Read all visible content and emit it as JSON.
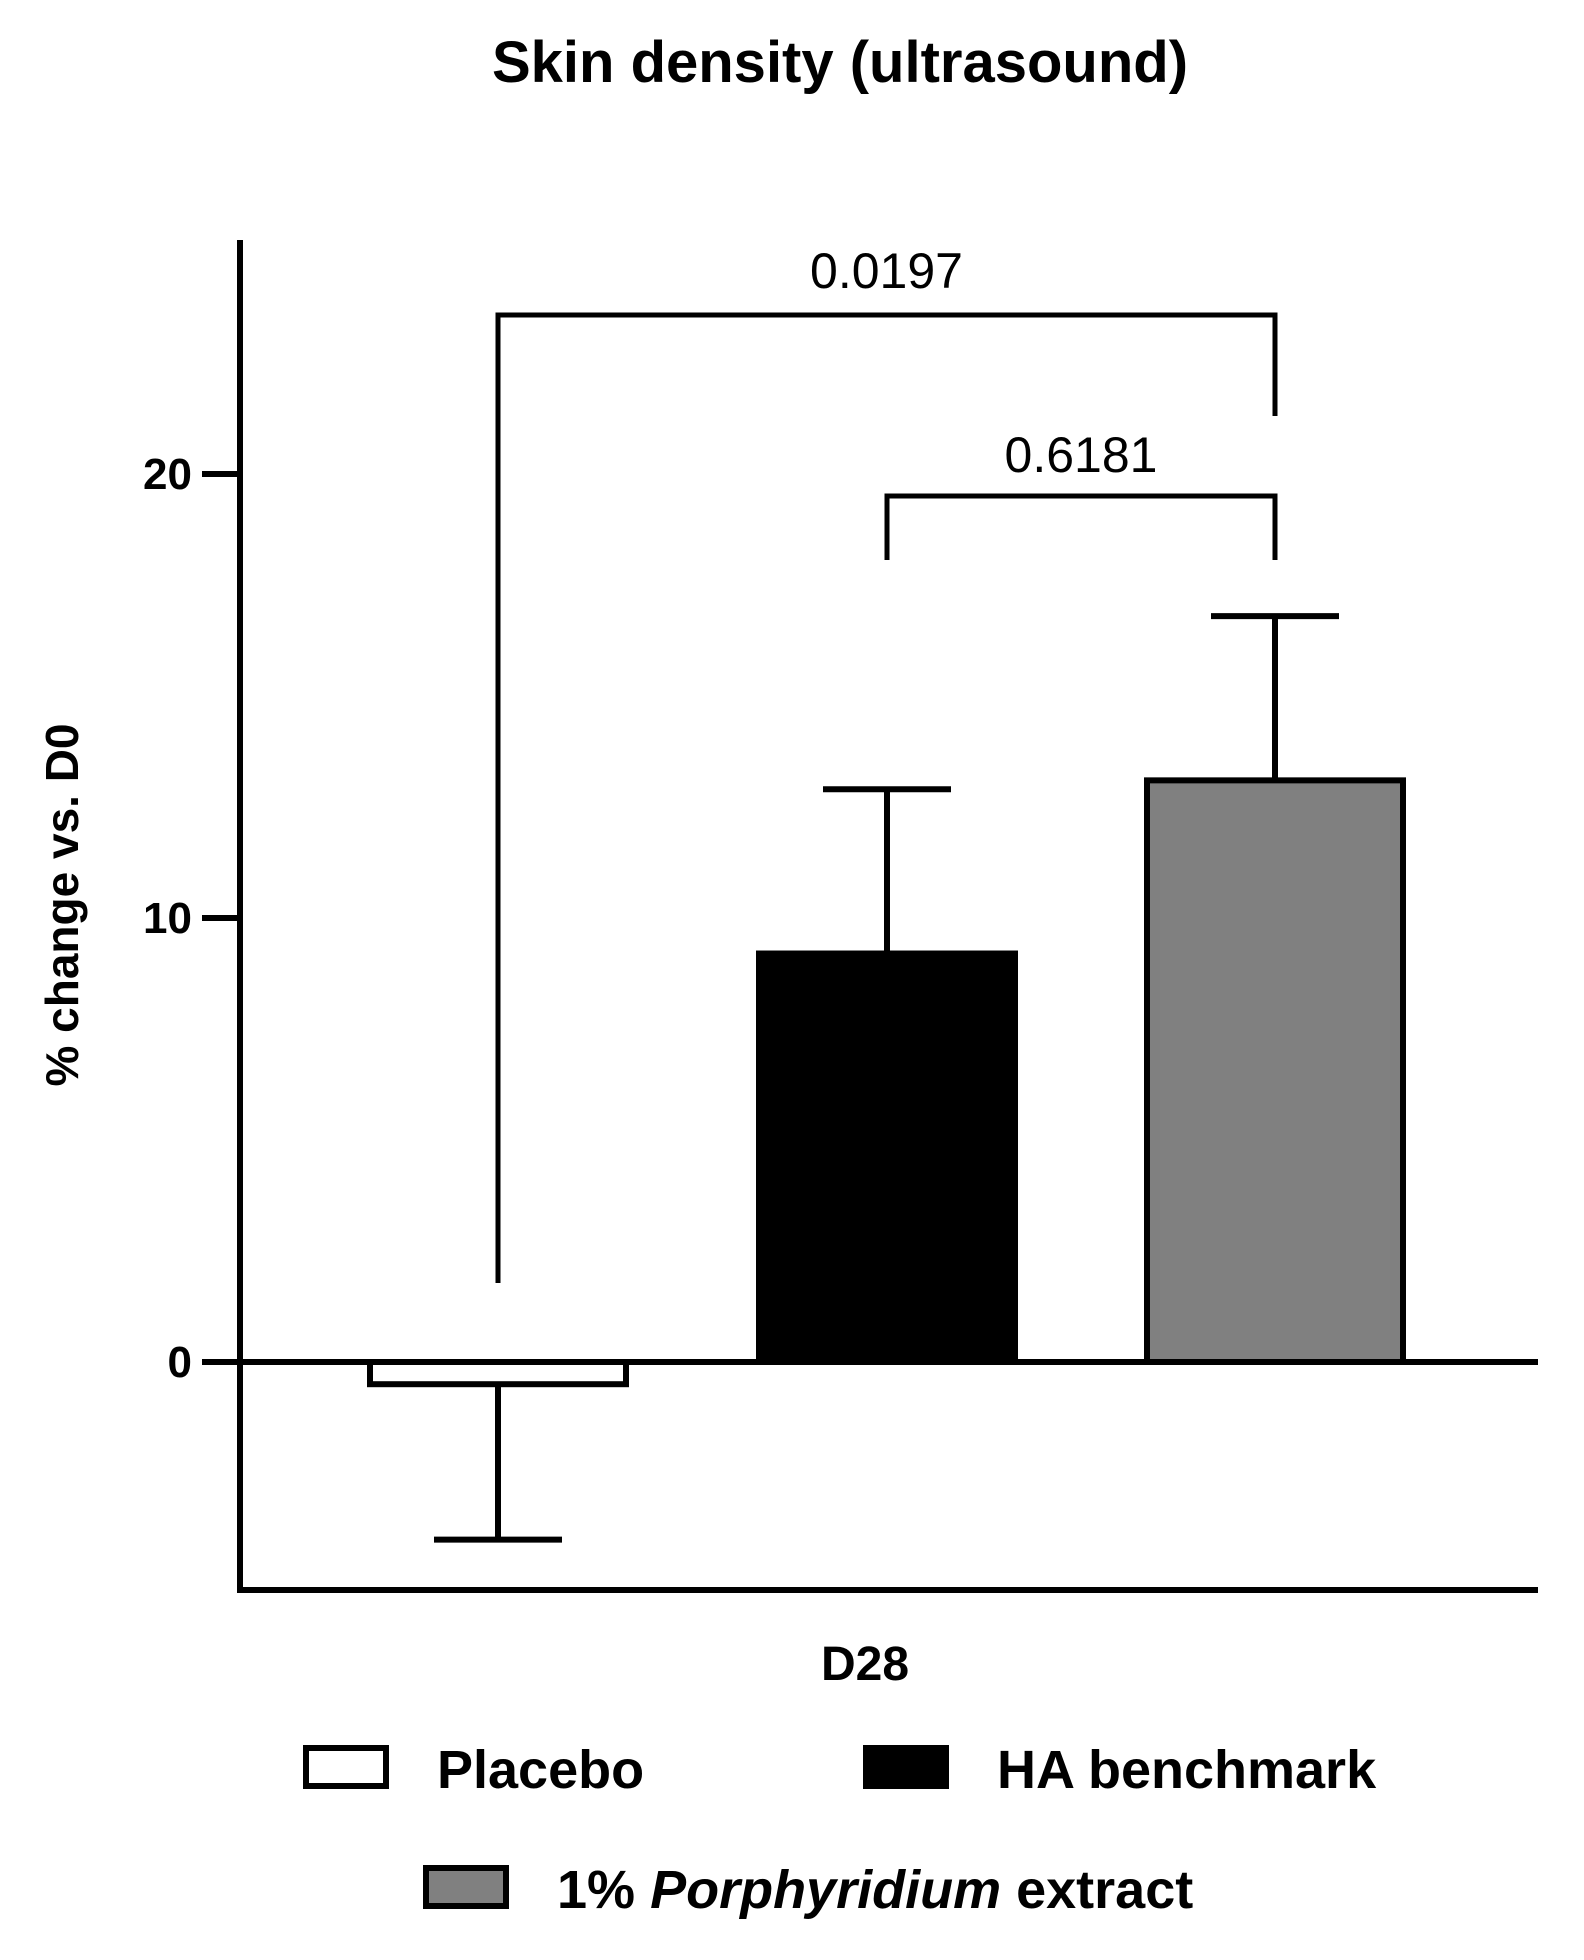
{
  "chart_data": {
    "type": "bar",
    "title": "Skin density (ultrasound)",
    "xlabel": "",
    "ylabel": "% change vs. D0",
    "category_label": "D28",
    "ylim": [
      -5,
      24
    ],
    "yticks": [
      0,
      10,
      20
    ],
    "ytick_labels": [
      "0",
      "10",
      "20"
    ],
    "grid": false,
    "series": [
      {
        "name": "Placebo",
        "value": -0.5,
        "error": 3.5,
        "color": "#ffffff",
        "stroke": "#000000"
      },
      {
        "name": "HA benchmark",
        "value": 9.2,
        "error": 3.7,
        "color": "#000000",
        "stroke": "#000000"
      },
      {
        "name": "1% Porphyridium extract",
        "value": 13.1,
        "error": 3.7,
        "color": "#808080",
        "stroke": "#000000"
      }
    ],
    "comparisons": [
      {
        "from": "Placebo",
        "to": "1% Porphyridium extract",
        "p": "0.0197"
      },
      {
        "from": "HA benchmark",
        "to": "1% Porphyridium extract",
        "p": "0.6181"
      }
    ],
    "legend": {
      "placement": "bottom",
      "items": [
        {
          "prefix": "",
          "italic": "",
          "suffix": "Placebo",
          "color": "#ffffff"
        },
        {
          "prefix": "",
          "italic": "",
          "suffix": "HA benchmark",
          "color": "#000000"
        },
        {
          "prefix": "1% ",
          "italic": "Porphyridium",
          "suffix": " extract",
          "color": "#808080"
        }
      ]
    }
  }
}
